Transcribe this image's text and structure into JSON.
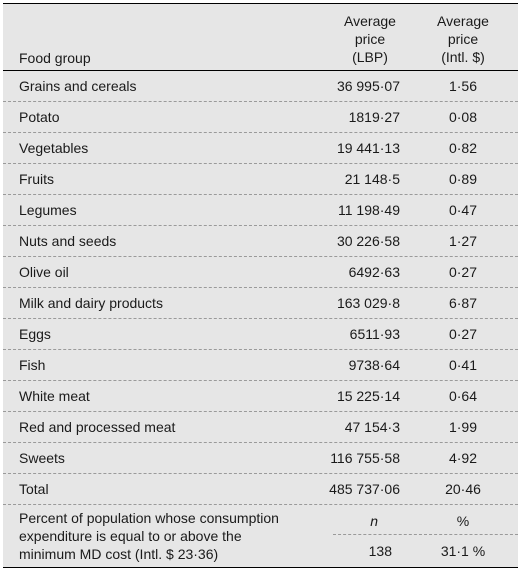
{
  "header": {
    "food_group": "Food group",
    "lbp_lines": [
      "Average",
      "price",
      "(LBP)"
    ],
    "intl_lines": [
      "Average",
      "price",
      "(Intl. $)"
    ]
  },
  "rows": [
    {
      "food": "Grains and cereals",
      "lbp": "36 995·07",
      "intl": "1·56"
    },
    {
      "food": "Potato",
      "lbp": "1819·27",
      "intl": "0·08"
    },
    {
      "food": "Vegetables",
      "lbp": "19 441·13",
      "intl": "0·82"
    },
    {
      "food": "Fruits",
      "lbp": "21 148·5",
      "intl": "0·89"
    },
    {
      "food": "Legumes",
      "lbp": "11 198·49",
      "intl": "0·47"
    },
    {
      "food": "Nuts and seeds",
      "lbp": "30 226·58",
      "intl": "1·27"
    },
    {
      "food": "Olive oil",
      "lbp": "6492·63",
      "intl": "0·27"
    },
    {
      "food": "Milk and dairy products",
      "lbp": "163 029·8",
      "intl": "6·87"
    },
    {
      "food": "Eggs",
      "lbp": "6511·93",
      "intl": "0·27"
    },
    {
      "food": "Fish",
      "lbp": "9738·64",
      "intl": "0·41"
    },
    {
      "food": "White meat",
      "lbp": "15 225·14",
      "intl": "0·64"
    },
    {
      "food": "Red and processed meat",
      "lbp": "47 154·3",
      "intl": "1·99"
    },
    {
      "food": "Sweets",
      "lbp": "116 755·58",
      "intl": "4·92"
    },
    {
      "food": "Total",
      "lbp": "485 737·06",
      "intl": "20·46"
    }
  ],
  "population": {
    "label_lines": [
      "Percent of population whose consumption",
      "expenditure is equal to or above the",
      "minimum MD cost (Intl. $ 23·36)"
    ],
    "n_header": "n",
    "pct_header": "%",
    "n_value": "138",
    "pct_value": "31·1 %"
  }
}
